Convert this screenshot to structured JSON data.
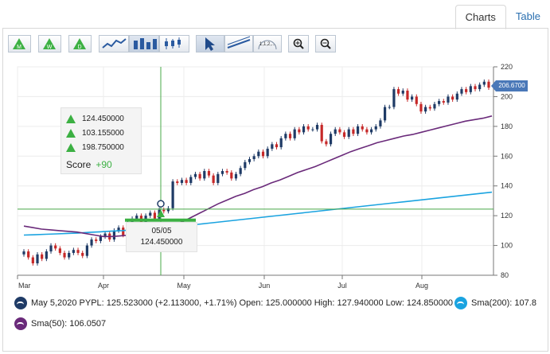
{
  "tabs": [
    {
      "label": "Charts",
      "active": true
    },
    {
      "label": "Table",
      "active": false
    }
  ],
  "toolbar": {
    "buttons": [
      {
        "name": "month-indicator-button",
        "glyph": "M"
      },
      {
        "name": "week-indicator-button",
        "glyph": "W"
      },
      {
        "name": "day-indicator-button",
        "glyph": "D"
      },
      {
        "name": "line-chart-button",
        "glyph": ""
      },
      {
        "name": "ohlc-chart-button",
        "glyph": "",
        "active": true
      },
      {
        "name": "candlestick-chart-button",
        "glyph": ""
      },
      {
        "name": "pointer-tool-button",
        "glyph": "",
        "active": true
      },
      {
        "name": "trendline-tool-button",
        "glyph": ""
      },
      {
        "name": "fibonacci-tool-button",
        "glyph": "1,1,2,..."
      },
      {
        "name": "zoom-in-button",
        "glyph": ""
      },
      {
        "name": "zoom-out-button",
        "glyph": ""
      }
    ]
  },
  "tooltip": {
    "rows": [
      {
        "icon": "M",
        "value": "124.450000"
      },
      {
        "icon": "W",
        "value": "103.155000"
      },
      {
        "icon": "D",
        "value": "198.750000"
      }
    ],
    "score_label": "Score",
    "score_value": "+90"
  },
  "hover": {
    "date": "05/05",
    "value": "124.450000"
  },
  "price_badge": "206.6700",
  "legend": {
    "main": "May 5,2020 PYPL: 125.523000 (+2.113000, +1.71%) Open: 125.000000 High: 127.940000 Low: 124.850000",
    "sma200": "Sma(200): 107.8",
    "sma50": "Sma(50): 106.0507"
  },
  "colors": {
    "up": "#1f3b66",
    "down": "#c62828",
    "sma50": "#6a2a7a",
    "sma200": "#1aa3e0",
    "signal": "#3cb043",
    "crosshair": "#48a848"
  },
  "chart_data": {
    "type": "candlestick",
    "ticker": "PYPL",
    "x_tick_labels": [
      "Mar",
      "Apr",
      "May",
      "Jun",
      "Jul",
      "Aug"
    ],
    "y_ticks": [
      80,
      100,
      120,
      140,
      160,
      180,
      200,
      220
    ],
    "ylim": [
      80,
      220
    ],
    "close_series": [
      96,
      92,
      88,
      94,
      91,
      96,
      100,
      98,
      95,
      92,
      95,
      97,
      95,
      93,
      100,
      104,
      103,
      106,
      108,
      104,
      110,
      112,
      107,
      115,
      118,
      120,
      115,
      120,
      122,
      118,
      124,
      123,
      125,
      143,
      142,
      144,
      142,
      146,
      148,
      145,
      150,
      147,
      142,
      148,
      150,
      149,
      145,
      148,
      152,
      156,
      158,
      160,
      163,
      160,
      165,
      168,
      166,
      172,
      175,
      172,
      178,
      176,
      180,
      178,
      178,
      181,
      170,
      168,
      175,
      178,
      176,
      173,
      178,
      175,
      180,
      178,
      176,
      178,
      180,
      184,
      193,
      193,
      205,
      202,
      204,
      198,
      200,
      195,
      190,
      193,
      192,
      195,
      197,
      196,
      200,
      198,
      202,
      205,
      203,
      207,
      205,
      208,
      210,
      206
    ],
    "sma50": [
      113,
      112,
      111,
      110.5,
      110,
      109.5,
      109,
      108,
      107,
      106,
      106,
      106.5,
      107,
      108,
      109,
      110.5,
      112,
      114,
      116,
      119,
      122,
      125,
      128,
      130.5,
      133,
      135,
      137.5,
      139.5,
      142,
      144,
      146.5,
      149,
      151,
      153,
      155.5,
      158,
      160.5,
      163,
      165,
      167,
      169,
      170.5,
      172,
      173.5,
      174.5,
      176,
      177.5,
      179,
      180.5,
      182,
      183.5,
      184.5,
      185.5,
      187
    ],
    "sma200": [
      107,
      107.2,
      107.5,
      107.8,
      108.1,
      108.4,
      108.8,
      109.2,
      109.6,
      110,
      110.5,
      111,
      111.6,
      112.2,
      112.8,
      113.5,
      114.2,
      115,
      115.8,
      116.6,
      117.4,
      118.2,
      119,
      119.8,
      120.6,
      121.4,
      122.2,
      123,
      123.8,
      124.6,
      125.4,
      126.2,
      127,
      127.8,
      128.6,
      129.4,
      130.2,
      131,
      131.8,
      132.6,
      133.4,
      134.2,
      135,
      135.8
    ],
    "crosshair": {
      "date": "05/05",
      "price": 124.45
    },
    "last_price": 206.67
  }
}
